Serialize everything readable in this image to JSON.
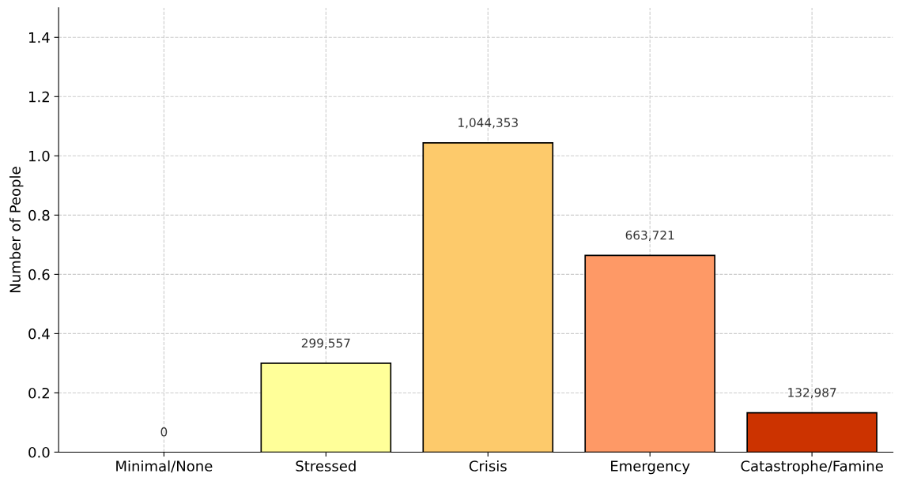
{
  "chart_data": {
    "type": "bar",
    "ylabel": "Number of People",
    "categories": [
      "Minimal/None",
      "Stressed",
      "Crisis",
      "Emergency",
      "Catastrophe/Famine"
    ],
    "values": [
      0,
      0.3,
      1.044,
      0.664,
      0.133
    ],
    "colors": [
      "#ffffcc",
      "#ffff99",
      "#fdca6b",
      "#fe9966",
      "#cc3300"
    ],
    "annotations": [
      {
        "text": "0",
        "x": "Minimal/None",
        "y": 0
      },
      {
        "text": "299,557",
        "x": "Stressed",
        "y": 0.3
      },
      {
        "text": "1,044,353",
        "x": "Crisis",
        "y": 1.044
      },
      {
        "text": "663,721",
        "x": "Emergency",
        "y": 0.664
      },
      {
        "text": "132,987",
        "x": "Catastrophe/Famine",
        "y": 0.133
      }
    ],
    "ylim": [
      0,
      1.5
    ],
    "yticks": [
      {
        "value": 0,
        "label": "0.0"
      },
      0.2,
      0.4,
      0.6,
      0.8,
      {
        "value": 1,
        "label": "1.0"
      },
      1.2,
      1.4
    ],
    "grid": true
  }
}
